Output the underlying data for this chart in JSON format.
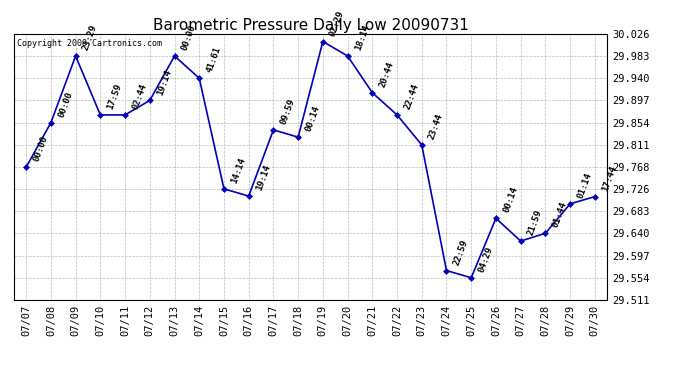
{
  "title": "Barometric Pressure Daily Low 20090731",
  "copyright": "Copyright 2009 Cartronics.com",
  "dates": [
    "07/07",
    "07/08",
    "07/09",
    "07/10",
    "07/11",
    "07/12",
    "07/13",
    "07/14",
    "07/15",
    "07/16",
    "07/17",
    "07/18",
    "07/19",
    "07/20",
    "07/21",
    "07/22",
    "07/23",
    "07/24",
    "07/25",
    "07/26",
    "07/27",
    "07/28",
    "07/29",
    "07/30"
  ],
  "values": [
    29.768,
    29.854,
    29.983,
    29.869,
    29.869,
    29.897,
    29.983,
    29.94,
    29.726,
    29.712,
    29.84,
    29.826,
    30.011,
    29.983,
    29.912,
    29.869,
    29.811,
    29.568,
    29.554,
    29.669,
    29.625,
    29.64,
    29.697,
    29.711
  ],
  "time_labels": [
    "00:00",
    "00:00",
    "23:29",
    "17:59",
    "02:44",
    "19:14",
    "00:00",
    "41:61",
    "14:14",
    "19:14",
    "09:59",
    "00:14",
    "02:29",
    "18:14",
    "20:44",
    "22:44",
    "23:44",
    "22:59",
    "04:29",
    "00:14",
    "21:59",
    "01:44",
    "01:14",
    "17:44"
  ],
  "ylim_min": 29.511,
  "ylim_max": 30.026,
  "yticks": [
    29.511,
    29.554,
    29.597,
    29.64,
    29.683,
    29.726,
    29.768,
    29.811,
    29.854,
    29.897,
    29.94,
    29.983,
    30.026
  ],
  "line_color": "#0000bb",
  "marker_color": "#0000bb",
  "bg_color": "#ffffff",
  "grid_color": "#aaaaaa",
  "title_fontsize": 11,
  "tick_fontsize": 7.5,
  "annotation_fontsize": 6.5
}
